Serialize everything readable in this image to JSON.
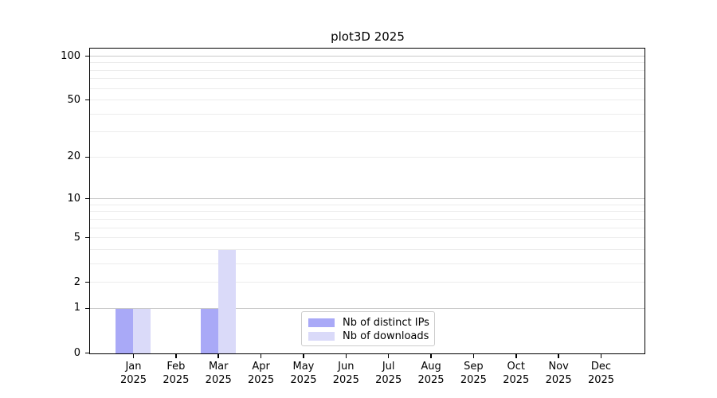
{
  "title": "plot3D 2025",
  "chart_data": {
    "type": "bar",
    "title": "plot3D 2025",
    "categories": [
      "Jan",
      "Feb",
      "Mar",
      "Apr",
      "May",
      "Jun",
      "Jul",
      "Aug",
      "Sep",
      "Oct",
      "Nov",
      "Dec"
    ],
    "x_year_label": "2025",
    "series": [
      {
        "name": "Nb of distinct IPs",
        "color": "#a9a9f7",
        "values": [
          1,
          0,
          1,
          0,
          0,
          0,
          0,
          0,
          0,
          0,
          0,
          0
        ]
      },
      {
        "name": "Nb of downloads",
        "color": "#dadaf9",
        "values": [
          1,
          0,
          4,
          0,
          0,
          0,
          0,
          0,
          0,
          0,
          0,
          0
        ]
      }
    ],
    "y_axis": {
      "scale": "log1p",
      "ticks": [
        0,
        1,
        2,
        5,
        10,
        20,
        50,
        100
      ],
      "major_gridlines": [
        1,
        10,
        100
      ],
      "minor_gridlines": [
        2,
        3,
        4,
        5,
        6,
        7,
        8,
        9,
        20,
        30,
        40,
        50,
        60,
        70,
        80,
        90
      ],
      "ylim": [
        0,
        115
      ]
    },
    "legend": {
      "entries": [
        "Nb of distinct IPs",
        "Nb of downloads"
      ],
      "position": "lower center"
    },
    "colors": {
      "distinct_ips": "#a9a9f7",
      "downloads": "#dadaf9",
      "major_grid": "#c9c9c9",
      "minor_grid": "#ececec",
      "spine": "#000000",
      "legend_border": "#cccccc"
    }
  }
}
